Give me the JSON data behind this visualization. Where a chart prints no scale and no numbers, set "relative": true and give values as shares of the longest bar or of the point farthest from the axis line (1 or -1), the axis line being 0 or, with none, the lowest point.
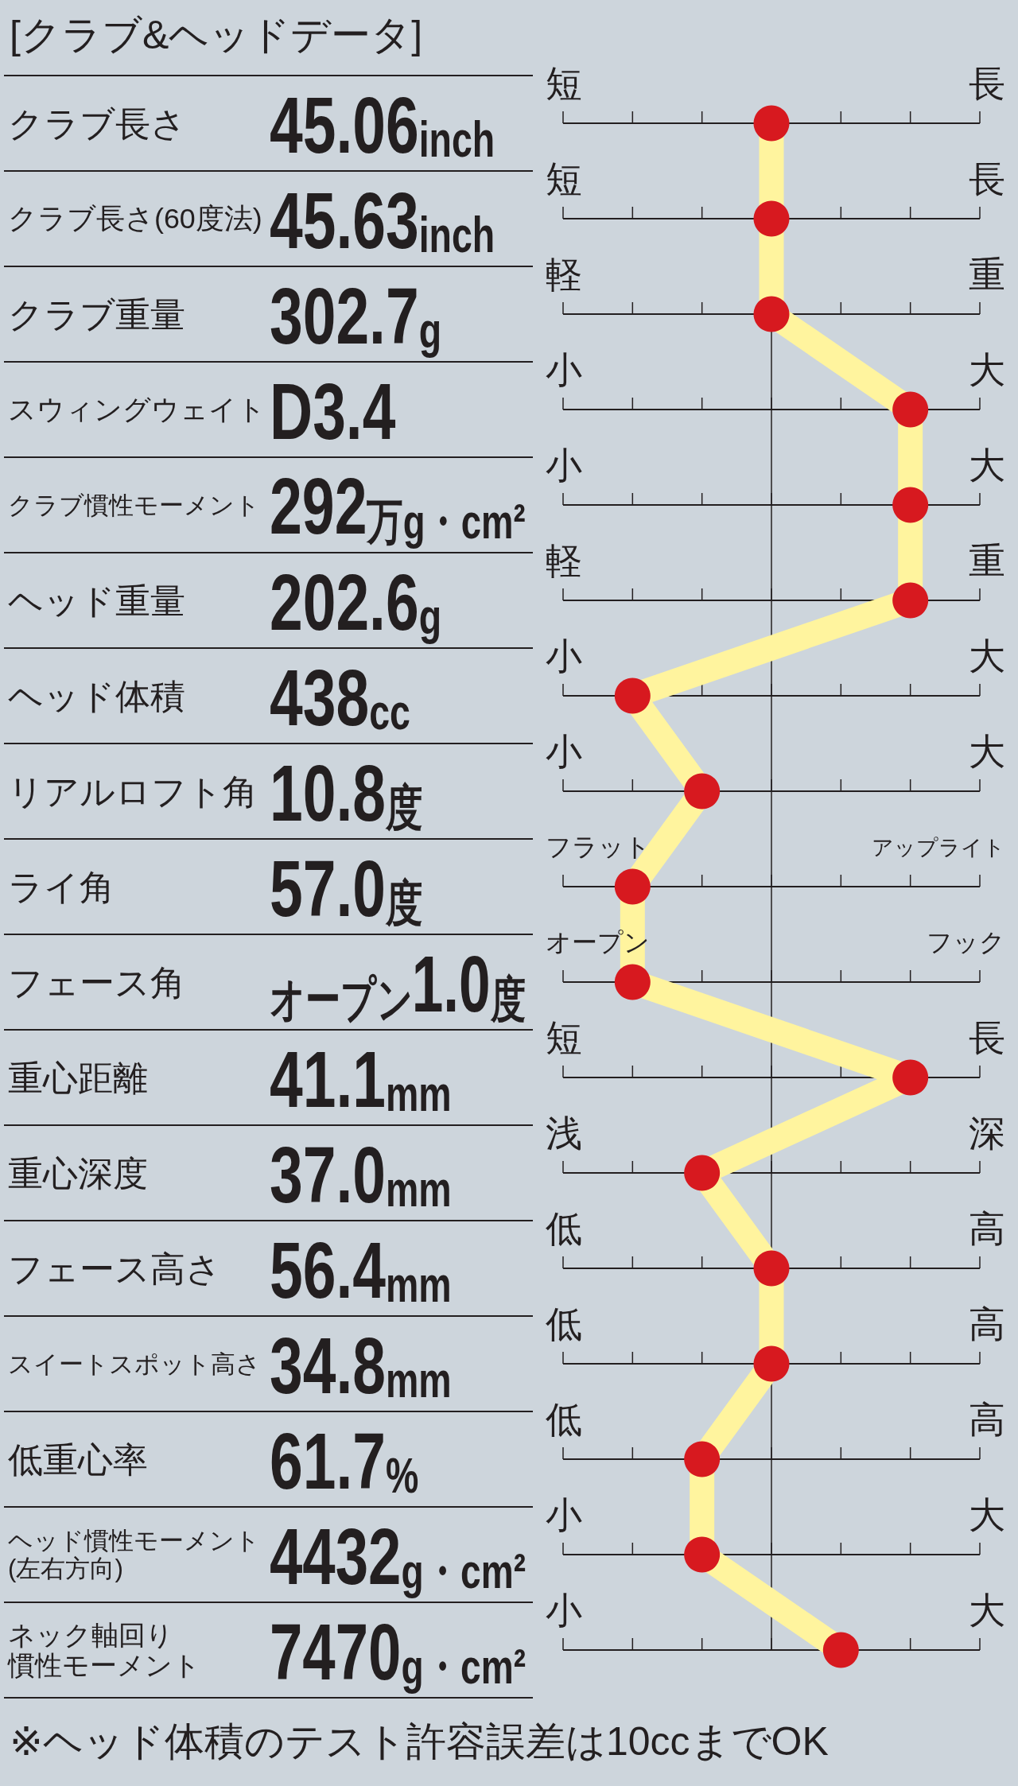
{
  "chart_data": {
    "type": "line",
    "orientation": "horizontal",
    "relative": true,
    "title": "[クラブ&ヘッドデータ]",
    "categories": [
      "クラブ長さ",
      "クラブ長さ(60度法)",
      "クラブ重量",
      "スウィングウェイト",
      "クラブ慣性モーメント",
      "ヘッド重量",
      "ヘッド体積",
      "リアルロフト角",
      "ライ角",
      "フェース角",
      "重心距離",
      "重心深度",
      "フェース高さ",
      "スイートスポット高さ",
      "低重心率",
      "ヘッド慣性モーメント(左右方向)",
      "ネック軸回り慣性モーメント"
    ],
    "series": [
      {
        "color": "#fff49e",
        "marker": "none",
        "values": [
          0,
          0,
          0,
          1,
          1,
          1,
          -1,
          -0.5,
          -1,
          -1,
          1,
          -0.5,
          0,
          0,
          -0.5,
          -0.5,
          0.5
        ]
      },
      {
        "type": "scatter",
        "color": "#d7191f",
        "values": [
          0,
          0,
          0,
          1,
          1,
          1,
          -1,
          -0.5,
          -1,
          -1,
          1,
          -0.5,
          0,
          0,
          -0.5,
          -0.5,
          0.5
        ]
      }
    ],
    "marker": "circle",
    "line_style": "solid",
    "grid": "y",
    "annotations": [
      "45.06inch",
      "短",
      "長",
      "45.63inch",
      "短",
      "長",
      "302.7g",
      "軽",
      "重",
      "D3.4",
      "小",
      "大",
      "292万g・cm²",
      "小",
      "大",
      "202.6g",
      "軽",
      "重",
      "438cc",
      "小",
      "大",
      "10.8度",
      "小",
      "大",
      "57.0度",
      "フラット",
      "アップライト",
      "オープン1.0度",
      "オープン",
      "フック",
      "41.1mm",
      "短",
      "長",
      "37.0mm",
      "浅",
      "深",
      "56.4mm",
      "低",
      "高",
      "34.8mm",
      "低",
      "高",
      "61.7%",
      "低",
      "高",
      "4432g・cm²",
      "小",
      "大",
      "7470g・cm²",
      "小",
      "大",
      "※ヘッド体積のテスト許容誤差は10ccまでOK"
    ]
  }
}
